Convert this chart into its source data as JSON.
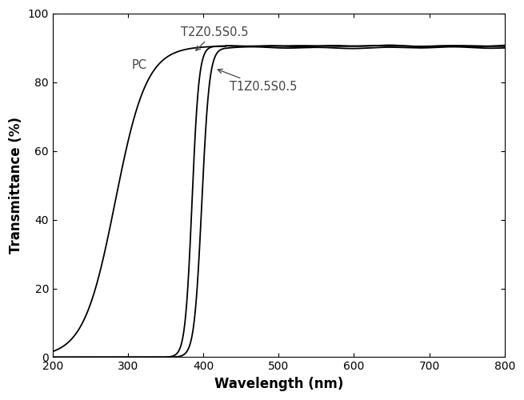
{
  "xlabel": "Wavelength (nm)",
  "ylabel": "Transmittance (%)",
  "xlim": [
    200,
    800
  ],
  "ylim": [
    0,
    100
  ],
  "xticks": [
    200,
    300,
    400,
    500,
    600,
    700,
    800
  ],
  "yticks": [
    0,
    20,
    40,
    60,
    80,
    100
  ],
  "line_color": "#000000",
  "pc": {
    "cutoff": 283,
    "steepness": 0.048,
    "max_val": 90.5
  },
  "t2z": {
    "cutoff": 385,
    "steepness": 0.22,
    "max_val": 90.5
  },
  "t1z": {
    "cutoff": 398,
    "steepness": 0.2,
    "max_val": 90.0
  },
  "annotation_color": "#444444",
  "annotation_fontsize": 10.5
}
